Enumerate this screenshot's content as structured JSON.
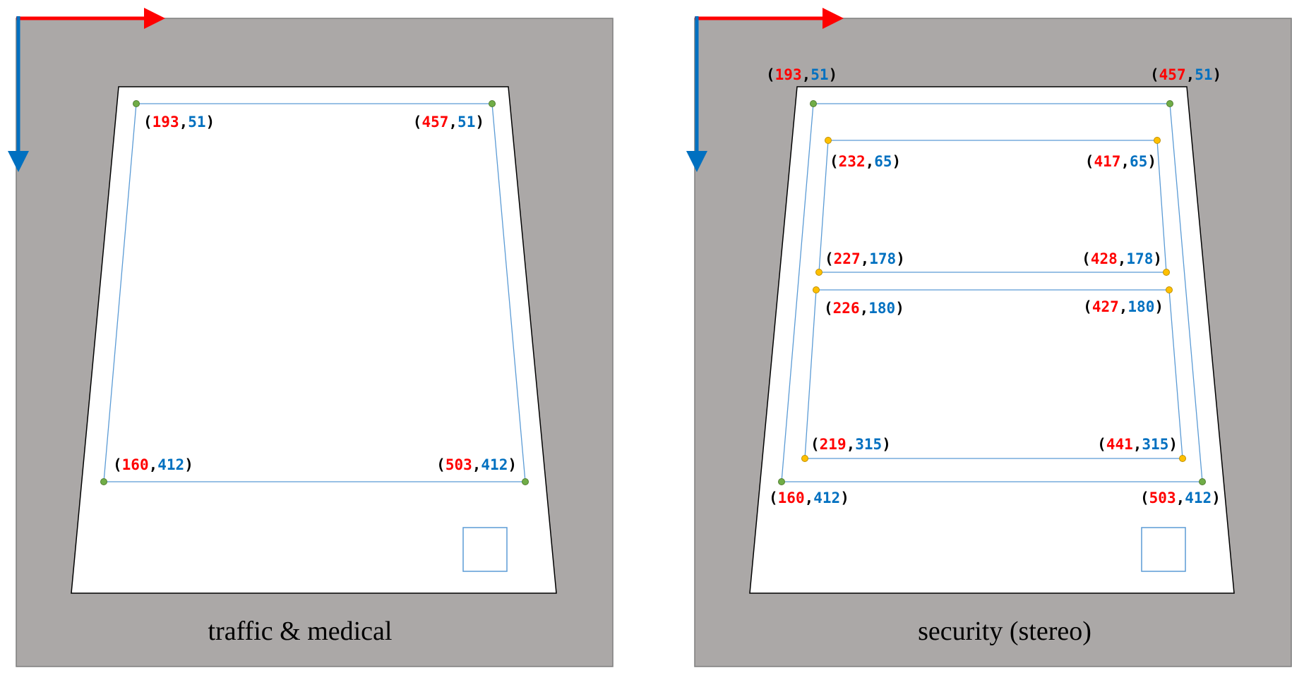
{
  "colors": {
    "background": "#ffffff",
    "frame": "#aba8a7",
    "frame_border": "#7f7f7f",
    "screen": "#ffffff",
    "screen_border": "#000000",
    "line": "#5b9bd5",
    "x_value": "#ff0000",
    "y_value": "#0070c0",
    "bracket": "#000000",
    "outer_point": "#70ad47",
    "inner_point": "#ffc000",
    "caption": "#000000"
  },
  "panels": [
    {
      "id": "traffic",
      "caption": "traffic & medical",
      "axes": {
        "x_axis": "x-axis-arrow",
        "y_axis": "y-axis-arrow"
      },
      "points": [
        {
          "id": "tl",
          "x": "193",
          "y": "51",
          "kind": "outer"
        },
        {
          "id": "tr",
          "x": "457",
          "y": "51",
          "kind": "outer"
        },
        {
          "id": "bl",
          "x": "160",
          "y": "412",
          "kind": "outer"
        },
        {
          "id": "br",
          "x": "503",
          "y": "412",
          "kind": "outer"
        }
      ]
    },
    {
      "id": "security",
      "caption": "security (stereo)",
      "axes": {
        "x_axis": "x-axis-arrow",
        "y_axis": "y-axis-arrow"
      },
      "points": [
        {
          "id": "tl",
          "x": "193",
          "y": "51",
          "kind": "outer"
        },
        {
          "id": "tr",
          "x": "457",
          "y": "51",
          "kind": "outer"
        },
        {
          "id": "bl",
          "x": "160",
          "y": "412",
          "kind": "outer"
        },
        {
          "id": "br",
          "x": "503",
          "y": "412",
          "kind": "outer"
        },
        {
          "id": "a_tl",
          "x": "232",
          "y": "65",
          "kind": "inner"
        },
        {
          "id": "a_tr",
          "x": "417",
          "y": "65",
          "kind": "inner"
        },
        {
          "id": "a_bl",
          "x": "227",
          "y": "178",
          "kind": "inner"
        },
        {
          "id": "a_br",
          "x": "428",
          "y": "178",
          "kind": "inner"
        },
        {
          "id": "b_tl",
          "x": "226",
          "y": "180",
          "kind": "inner"
        },
        {
          "id": "b_tr",
          "x": "427",
          "y": "180",
          "kind": "inner"
        },
        {
          "id": "b_bl",
          "x": "219",
          "y": "315",
          "kind": "inner"
        },
        {
          "id": "b_br",
          "x": "441",
          "y": "315",
          "kind": "inner"
        }
      ]
    }
  ]
}
